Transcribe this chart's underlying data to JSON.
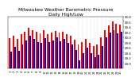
{
  "title": "Milwaukee Weather Barometric Pressure",
  "subtitle": "Daily High/Low",
  "title_fontsize": 4.2,
  "bar_width": 0.4,
  "high_color": "#ff0000",
  "low_color": "#0000cc",
  "background_color": "#ffffff",
  "ylim": [
    28.8,
    30.8
  ],
  "yticks": [
    29.0,
    29.2,
    29.4,
    29.6,
    29.8,
    30.0,
    30.2,
    30.4,
    30.6,
    30.8
  ],
  "ytick_fontsize": 2.8,
  "xtick_fontsize": 2.5,
  "high_values": [
    29.95,
    30.05,
    29.92,
    30.1,
    30.22,
    30.35,
    30.28,
    30.2,
    30.15,
    30.28,
    30.12,
    30.18,
    30.25,
    30.18,
    30.22,
    30.1,
    30.05,
    29.9,
    29.7,
    29.82,
    29.92,
    29.78,
    29.65,
    29.72,
    29.98,
    30.28,
    30.45,
    30.6,
    30.52,
    30.48
  ],
  "low_values": [
    29.45,
    29.62,
    29.48,
    29.72,
    29.88,
    30.05,
    29.92,
    29.82,
    29.78,
    29.95,
    29.82,
    29.88,
    29.98,
    29.85,
    29.92,
    29.78,
    29.72,
    29.5,
    29.1,
    29.38,
    29.58,
    29.38,
    29.22,
    29.32,
    29.65,
    29.98,
    30.18,
    30.28,
    30.15,
    30.2
  ],
  "xlabels": [
    "1",
    "2",
    "3",
    "4",
    "5",
    "6",
    "7",
    "8",
    "9",
    "10",
    "11",
    "12",
    "13",
    "14",
    "15",
    "16",
    "17",
    "18",
    "19",
    "20",
    "21",
    "22",
    "23",
    "24",
    "25",
    "26",
    "27",
    "28",
    "29",
    "30"
  ]
}
